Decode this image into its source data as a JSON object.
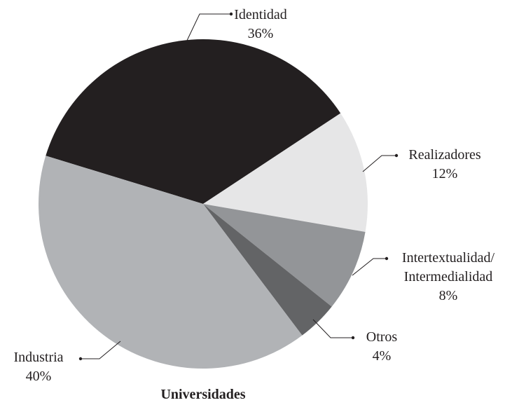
{
  "chart_data": {
    "type": "pie",
    "title": "Universidades",
    "categories": [
      "Identidad",
      "Realizadores",
      "Intertextualidad/\nIntermedialidad",
      "Otros",
      "Industria"
    ],
    "values": [
      36,
      12,
      8,
      4,
      40
    ],
    "value_labels": [
      "36%",
      "12%",
      "8%",
      "4%",
      "40%"
    ],
    "colors": [
      "#231f20",
      "#e6e6e7",
      "#939598",
      "#636466",
      "#b1b3b6"
    ]
  }
}
